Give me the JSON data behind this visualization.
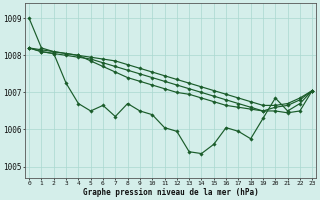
{
  "background_color": "#d4eeea",
  "grid_color": "#aad8d0",
  "line_color": "#1a5c2a",
  "ylabel_values": [
    1005,
    1006,
    1007,
    1008,
    1009
  ],
  "xlabel_label": "Graphe pression niveau de la mer (hPa)",
  "xlim_min": 0,
  "xlim_max": 23,
  "ylim_min": 1004.7,
  "ylim_max": 1009.4,
  "series": [
    [
      1009.0,
      1008.2,
      1008.1,
      1008.05,
      1008.0,
      1007.85,
      1007.7,
      1007.55,
      1007.4,
      1007.3,
      1007.2,
      1007.1,
      1007.0,
      1006.95,
      1006.85,
      1006.75,
      1006.65,
      1006.6,
      1006.55,
      1006.5,
      1006.5,
      1006.45,
      1006.5,
      1007.05
    ],
    [
      1008.2,
      1008.15,
      1008.1,
      1008.05,
      1008.0,
      1007.95,
      1007.9,
      1007.85,
      1007.75,
      1007.65,
      1007.55,
      1007.45,
      1007.35,
      1007.25,
      1007.15,
      1007.05,
      1006.95,
      1006.85,
      1006.75,
      1006.65,
      1006.65,
      1006.7,
      1006.85,
      1007.05
    ],
    [
      1008.2,
      1008.1,
      1008.05,
      1008.0,
      1007.95,
      1007.9,
      1007.8,
      1007.7,
      1007.6,
      1007.5,
      1007.4,
      1007.3,
      1007.2,
      1007.1,
      1007.0,
      1006.9,
      1006.8,
      1006.7,
      1006.6,
      1006.5,
      1006.6,
      1006.65,
      1006.8,
      1007.05
    ],
    [
      1008.2,
      1008.1,
      1008.05,
      1007.25,
      1006.7,
      1006.5,
      1006.65,
      1006.35,
      1006.7,
      1006.5,
      1006.4,
      1006.05,
      1005.95,
      1005.4,
      1005.35,
      1005.6,
      1006.05,
      1005.95,
      1005.75,
      1006.3,
      1006.85,
      1006.5,
      1006.7,
      1007.05
    ]
  ]
}
